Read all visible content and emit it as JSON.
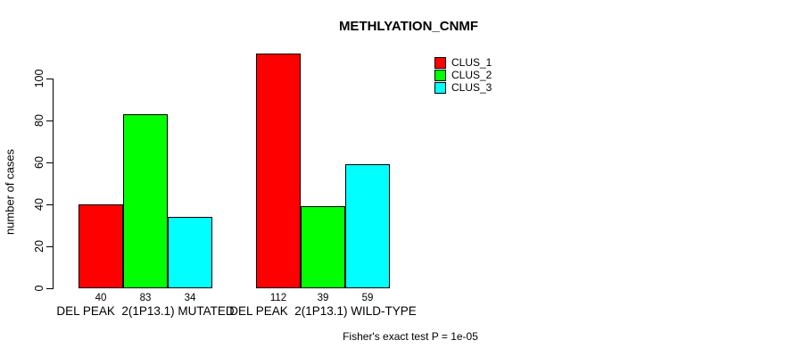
{
  "chart_data": {
    "type": "bar",
    "title": "METHLYATION_CNMF",
    "xlabel": "",
    "ylabel": "number of cases",
    "categories": [
      "DEL PEAK  2(1P13.1) MUTATED",
      "DEL PEAK  2(1P13.1) WILD-TYPE"
    ],
    "series": [
      {
        "name": "CLUS_1",
        "color": "#ff0000",
        "values": [
          40,
          112
        ]
      },
      {
        "name": "CLUS_2",
        "color": "#00ff00",
        "values": [
          83,
          39
        ]
      },
      {
        "name": "CLUS_3",
        "color": "#00ffff",
        "values": [
          34,
          59
        ]
      }
    ],
    "ylim": [
      0,
      100
    ],
    "yticks": [
      0,
      20,
      40,
      60,
      80,
      100
    ],
    "grid": false,
    "legend_position": "top-right",
    "bar_value_labels_shown": true,
    "annotation": "Fisher's exact test P = 1e-05"
  },
  "colors": {
    "background": "#ffffff",
    "text": "#000000",
    "axis": "#000000",
    "bar_border": "#000000"
  }
}
